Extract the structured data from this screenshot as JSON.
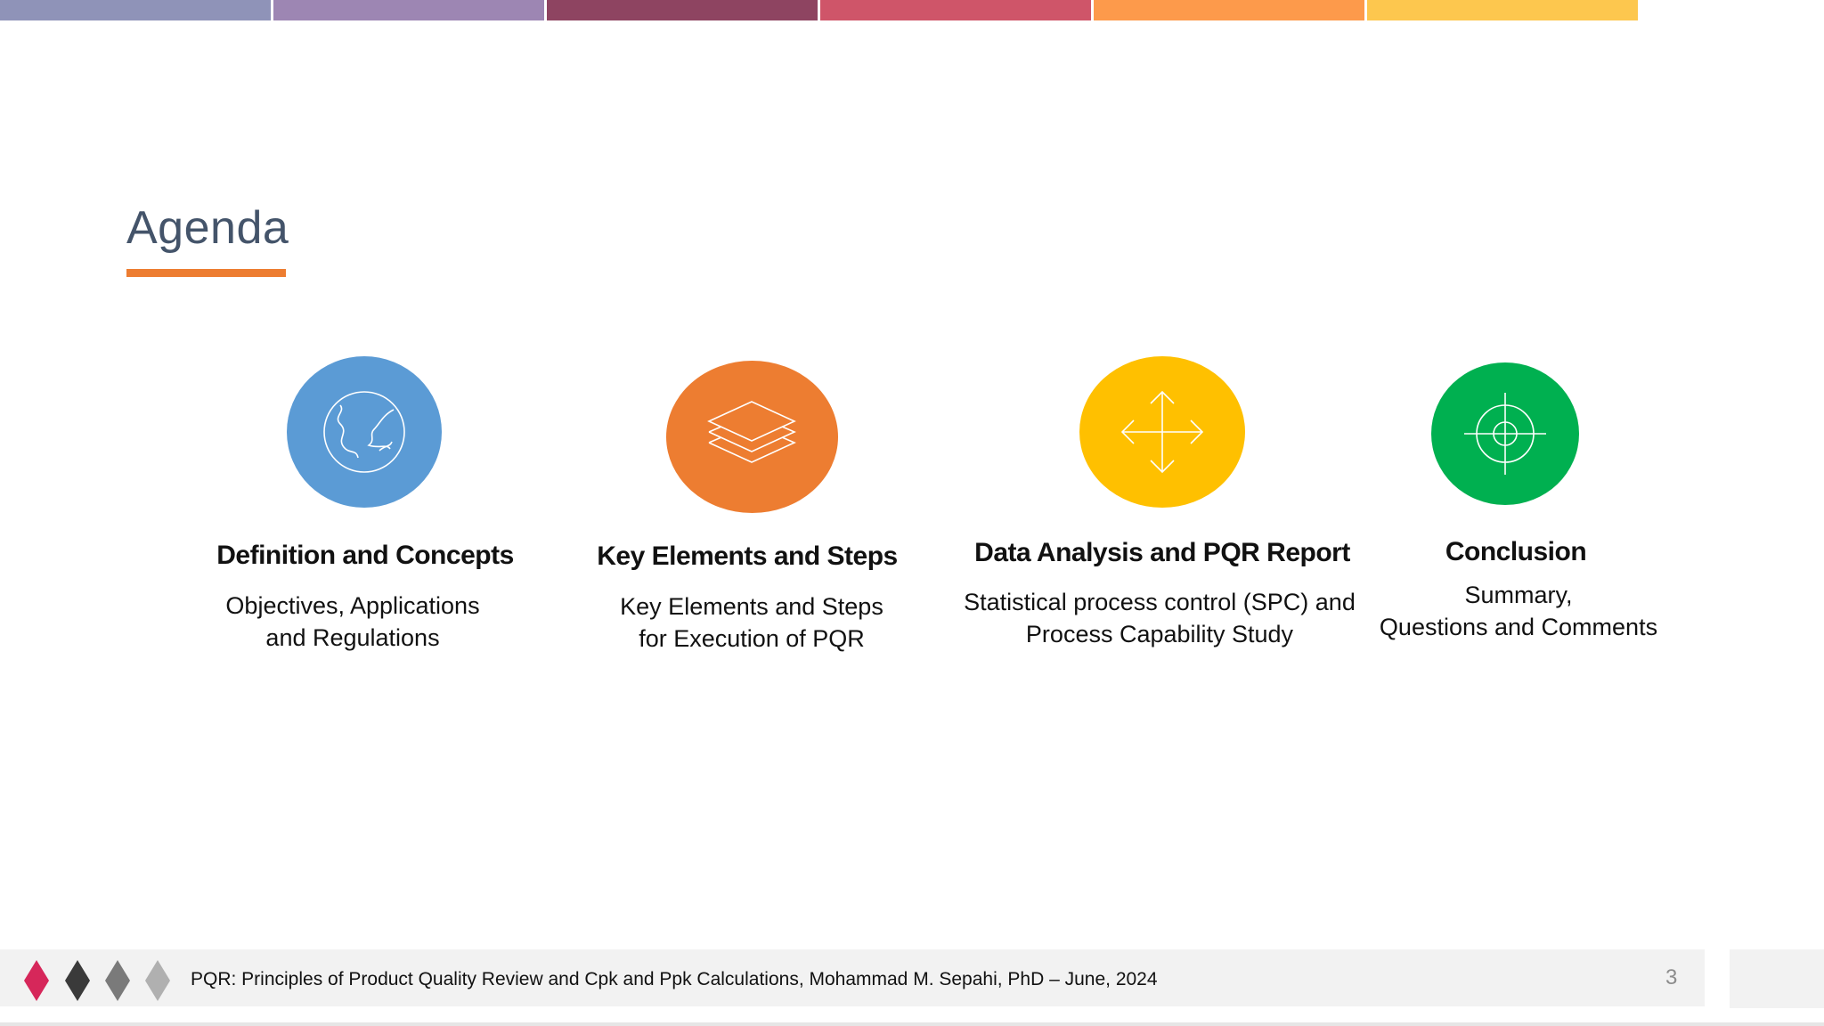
{
  "slide": {
    "title": "Agenda",
    "accent_color": "#ed7d31",
    "title_color": "#44546a"
  },
  "top_strip": {
    "colors": [
      "#8f93b8",
      "#9d86b3",
      "#8e4461",
      "#cf5569",
      "#fd9a4b",
      "#fdc74e"
    ]
  },
  "agenda_items": [
    {
      "icon": "globe-icon",
      "color": "#5b9bd5",
      "heading": "Definition and Concepts",
      "sub_line1": "Objectives, Applications",
      "sub_line2": "and Regulations"
    },
    {
      "icon": "layers-icon",
      "color": "#ed7d31",
      "heading": "Key Elements and Steps",
      "sub_line1": "Key Elements and Steps",
      "sub_line2": "for Execution of PQR"
    },
    {
      "icon": "move-arrows-icon",
      "color": "#ffc000",
      "heading": "Data Analysis and PQR Report",
      "sub_line1": "Statistical process control (SPC) and",
      "sub_line2": "Process Capability Study"
    },
    {
      "icon": "crosshair-icon",
      "color": "#00b050",
      "heading": "Conclusion",
      "sub_line1": "Summary,",
      "sub_line2": "Questions and Comments"
    }
  ],
  "footer": {
    "text": "PQR: Principles of Product Quality Review and Cpk and Ppk Calculations, Mohammad M. Sepahi, PhD – June, 2024",
    "page_number": "3",
    "diamond_colors": [
      "#d6275a",
      "#3a3a3a",
      "#7a7a7a",
      "#b0b0b0"
    ]
  }
}
